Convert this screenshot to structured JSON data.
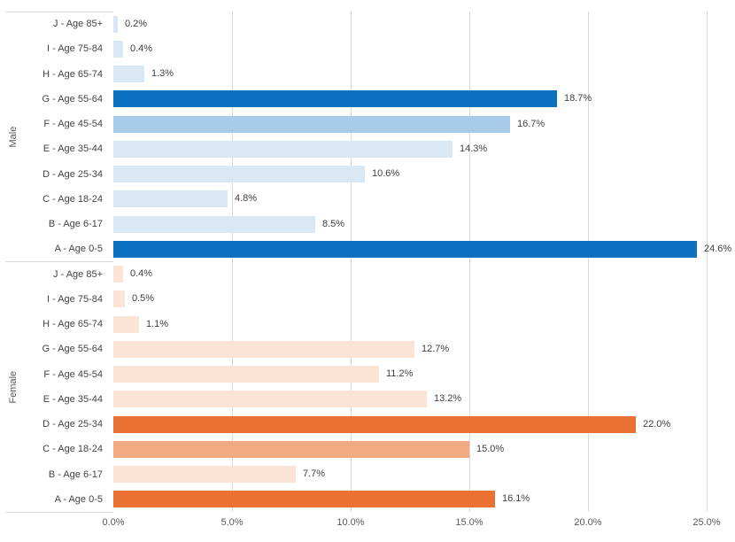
{
  "chart_data": {
    "type": "bar",
    "orientation": "horizontal",
    "title": "",
    "xlabel": "",
    "ylabel": "",
    "legend": "none",
    "x_axis": {
      "tick_labels": [
        "0.0%",
        "5.0%",
        "10.0%",
        "15.0%",
        "20.0%",
        "25.0%"
      ],
      "tick_values": [
        0,
        5,
        10,
        15,
        20,
        25
      ],
      "max": 25,
      "grid": true
    },
    "groups": [
      {
        "name": "Male",
        "palette": {
          "dark": "#0B72C2",
          "medium": "#A8CBE9",
          "light": "#DAE7F4"
        },
        "rows": [
          {
            "label": "J - Age 85+",
            "value": 0.2,
            "value_label": "0.2%",
            "shade": "light"
          },
          {
            "label": "I - Age 75-84",
            "value": 0.4,
            "value_label": "0.4%",
            "shade": "light"
          },
          {
            "label": "H - Age 65-74",
            "value": 1.3,
            "value_label": "1.3%",
            "shade": "light"
          },
          {
            "label": "G - Age 55-64",
            "value": 18.7,
            "value_label": "18.7%",
            "shade": "dark"
          },
          {
            "label": "F - Age 45-54",
            "value": 16.7,
            "value_label": "16.7%",
            "shade": "medium"
          },
          {
            "label": "E - Age 35-44",
            "value": 14.3,
            "value_label": "14.3%",
            "shade": "light"
          },
          {
            "label": "D - Age 25-34",
            "value": 10.6,
            "value_label": "10.6%",
            "shade": "light"
          },
          {
            "label": "C - Age 18-24",
            "value": 4.8,
            "value_label": "4.8%",
            "shade": "light"
          },
          {
            "label": "B - Age 6-17",
            "value": 8.5,
            "value_label": "8.5%",
            "shade": "light"
          },
          {
            "label": "A - Age 0-5",
            "value": 24.6,
            "value_label": "24.6%",
            "shade": "dark"
          }
        ]
      },
      {
        "name": "Female",
        "palette": {
          "dark": "#E97132",
          "medium": "#F3AA82",
          "light": "#FBE3D5"
        },
        "rows": [
          {
            "label": "J - Age 85+",
            "value": 0.4,
            "value_label": "0.4%",
            "shade": "light"
          },
          {
            "label": "I - Age 75-84",
            "value": 0.5,
            "value_label": "0.5%",
            "shade": "light"
          },
          {
            "label": "H - Age 65-74",
            "value": 1.1,
            "value_label": "1.1%",
            "shade": "light"
          },
          {
            "label": "G - Age 55-64",
            "value": 12.7,
            "value_label": "12.7%",
            "shade": "light"
          },
          {
            "label": "F - Age 45-54",
            "value": 11.2,
            "value_label": "11.2%",
            "shade": "light"
          },
          {
            "label": "E - Age 35-44",
            "value": 13.2,
            "value_label": "13.2%",
            "shade": "light"
          },
          {
            "label": "D - Age 25-34",
            "value": 22.0,
            "value_label": "22.0%",
            "shade": "dark"
          },
          {
            "label": "C - Age 18-24",
            "value": 15.0,
            "value_label": "15.0%",
            "shade": "medium"
          },
          {
            "label": "B - Age 6-17",
            "value": 7.7,
            "value_label": "7.7%",
            "shade": "light"
          },
          {
            "label": "A - Age 0-5",
            "value": 16.1,
            "value_label": "16.1%",
            "shade": "dark"
          }
        ]
      }
    ],
    "colors": {
      "background": "#FFFFFF",
      "gridline": "#D9D9D9",
      "axis_divider": "#D9D9D9",
      "data_label_text": "#404040",
      "category_label_text": "#444444",
      "tick_label_text": "#595959",
      "group_label_text": "#595959"
    }
  }
}
